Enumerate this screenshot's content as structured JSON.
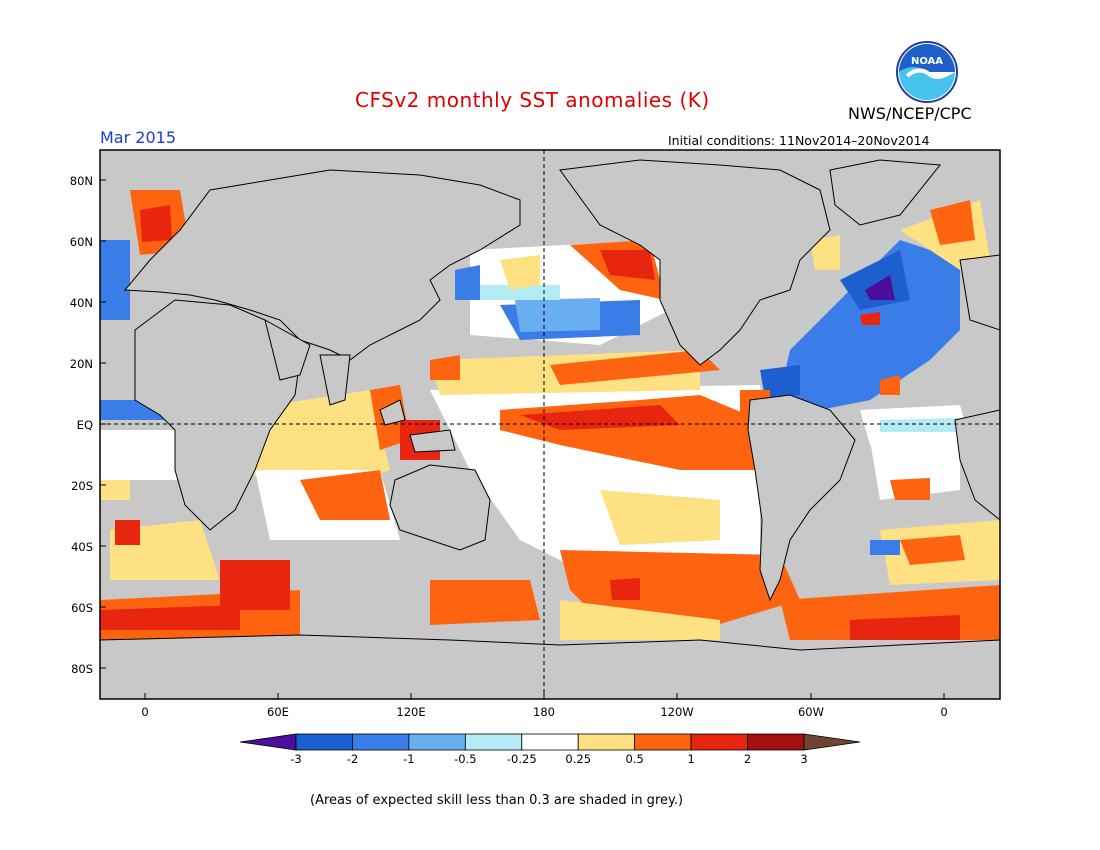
{
  "header": {
    "title": "CFSv2 monthly SST anomalies (K)",
    "agency": "NWS/NCEP/CPC",
    "month": "Mar 2015",
    "initial_conditions": "Initial conditions: 11Nov2014–20Nov2014"
  },
  "logo": {
    "text": "NOAA",
    "icon": "noaa-logo-icon"
  },
  "map": {
    "lat_ticks": [
      "80N",
      "60N",
      "40N",
      "20N",
      "EQ",
      "20S",
      "40S",
      "60S",
      "80S"
    ],
    "lon_ticks": [
      "0",
      "60E",
      "120E",
      "180",
      "120W",
      "60W",
      "0"
    ],
    "equator_line": "dashed",
    "dateline": "dashed",
    "masked_color": "#c8c8c8",
    "anomaly_features": [
      {
        "region": "Equatorial central-east Pacific",
        "level": "1"
      },
      {
        "region": "Northeast Pacific near Alaska",
        "level": "1 to 2"
      },
      {
        "region": "North-central Pacific",
        "level": "-1 to -0.5"
      },
      {
        "region": "North Atlantic subtropical gyre",
        "level": "-2 to -0.5"
      },
      {
        "region": "Southern Ocean south of Africa and Indian Ocean",
        "level": "0.5 to 2"
      },
      {
        "region": "South Pacific",
        "level": "0.5 to 1"
      }
    ]
  },
  "colorbar": {
    "colors": [
      "#4b0f9b",
      "#1d5fcf",
      "#3a7de8",
      "#6aaef2",
      "#b4ecf5",
      "#ffffff",
      "#fde182",
      "#fe6410",
      "#e8250f",
      "#a50f0f",
      "#6e4530"
    ],
    "labels": [
      "-3",
      "-2",
      "-1",
      "-0.5",
      "-0.25",
      "0.25",
      "0.5",
      "1",
      "2",
      "3"
    ]
  },
  "footnote": "(Areas of expected skill less than 0.3 are shaded in grey.)"
}
